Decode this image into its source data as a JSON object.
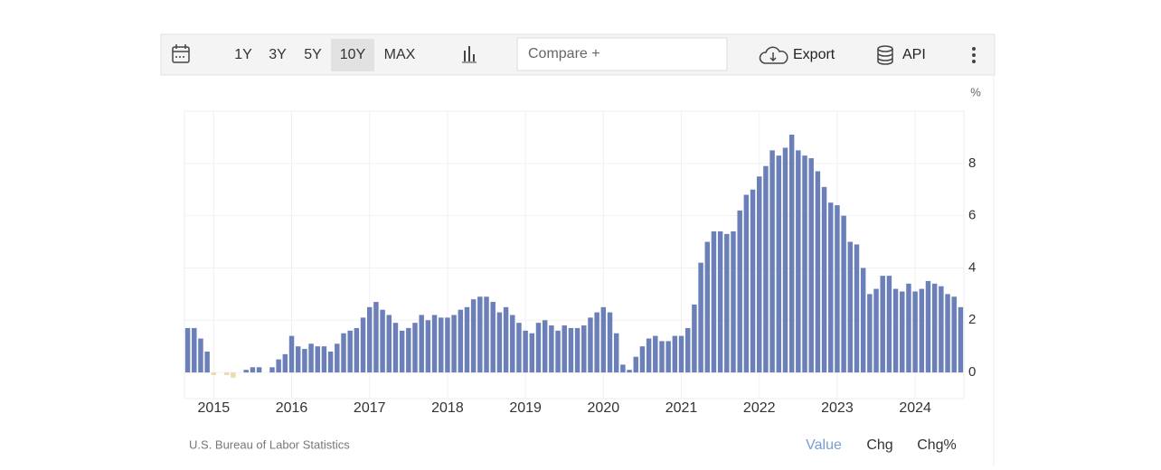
{
  "toolbar": {
    "ranges": [
      "1Y",
      "3Y",
      "5Y",
      "10Y",
      "MAX"
    ],
    "active_range": "10Y",
    "compare": "Compare +",
    "export": "Export",
    "api": "API"
  },
  "footer": {
    "source": "U.S. Bureau of Labor Statistics",
    "tabs": [
      "Value",
      "Chg",
      "Chg%"
    ],
    "active_tab": "Value"
  },
  "chart_data": {
    "type": "bar",
    "y_unit": "%",
    "color": "#6b7fb9",
    "negative_color": "#e9dcae",
    "grid": true,
    "categories": [
      null,
      null,
      null,
      null,
      "2015",
      null,
      null,
      null,
      null,
      null,
      null,
      null,
      null,
      null,
      null,
      null,
      "2016",
      null,
      null,
      null,
      null,
      null,
      null,
      null,
      null,
      null,
      null,
      null,
      "2017",
      null,
      null,
      null,
      null,
      null,
      null,
      null,
      null,
      null,
      null,
      null,
      "2018",
      null,
      null,
      null,
      null,
      null,
      null,
      null,
      null,
      null,
      null,
      null,
      "2019",
      null,
      null,
      null,
      null,
      null,
      null,
      null,
      null,
      null,
      null,
      null,
      "2020",
      null,
      null,
      null,
      null,
      null,
      null,
      null,
      null,
      null,
      null,
      null,
      "2021",
      null,
      null,
      null,
      null,
      null,
      null,
      null,
      null,
      null,
      null,
      null,
      "2022",
      null,
      null,
      null,
      null,
      null,
      null,
      null,
      null,
      null,
      null,
      null,
      "2023",
      null,
      null,
      null,
      null,
      null,
      null,
      null,
      null,
      null,
      null,
      null,
      "2024",
      null,
      null,
      null,
      null,
      null,
      null,
      null
    ],
    "values": [
      1.7,
      1.7,
      1.3,
      0.8,
      -0.1,
      0.0,
      -0.1,
      -0.2,
      0.0,
      0.1,
      0.2,
      0.2,
      0.0,
      0.2,
      0.5,
      0.7,
      1.4,
      1.0,
      0.9,
      1.1,
      1.0,
      1.0,
      0.8,
      1.1,
      1.5,
      1.6,
      1.7,
      2.1,
      2.5,
      2.7,
      2.4,
      2.2,
      1.9,
      1.6,
      1.7,
      1.9,
      2.2,
      2.0,
      2.2,
      2.1,
      2.1,
      2.2,
      2.4,
      2.5,
      2.8,
      2.9,
      2.9,
      2.7,
      2.3,
      2.5,
      2.2,
      1.9,
      1.6,
      1.5,
      1.9,
      2.0,
      1.8,
      1.6,
      1.8,
      1.7,
      1.7,
      1.8,
      2.1,
      2.3,
      2.5,
      2.3,
      1.5,
      0.3,
      0.1,
      0.6,
      1.0,
      1.3,
      1.4,
      1.2,
      1.2,
      1.4,
      1.4,
      1.7,
      2.6,
      4.2,
      5.0,
      5.4,
      5.4,
      5.3,
      5.4,
      6.2,
      6.8,
      7.0,
      7.5,
      7.9,
      8.5,
      8.3,
      8.6,
      9.1,
      8.5,
      8.3,
      8.2,
      7.7,
      7.1,
      6.5,
      6.4,
      6.0,
      5.0,
      4.9,
      4.0,
      3.0,
      3.2,
      3.7,
      3.7,
      3.2,
      3.1,
      3.4,
      3.1,
      3.2,
      3.5,
      3.4,
      3.3,
      3.0,
      2.9,
      2.5
    ],
    "ylim": [
      -1,
      10
    ],
    "yticks": [
      0,
      2,
      4,
      6,
      8
    ]
  }
}
